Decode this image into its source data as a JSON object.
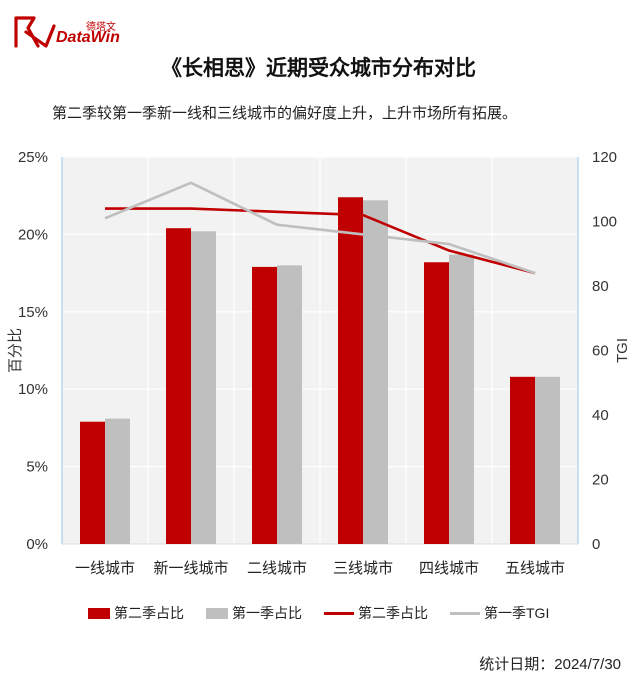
{
  "header": {
    "logo_cn": "德塔文",
    "logo_en": "DataWin",
    "title": "《长相思》近期受众城市分布对比",
    "subtitle": "第二季较第一季新一线和三线城市的偏好度上升，上升市场所有拓展。",
    "date": "统计日期：2024/7/30"
  },
  "colors": {
    "brand": "#c00000",
    "season2": "#c00000",
    "season1": "#bfbfbf",
    "plot_bg": "#f2f2f2"
  },
  "chart_data": {
    "type": "bar",
    "categories": [
      "一线城市",
      "新一线城市",
      "二线城市",
      "三线城市",
      "四线城市",
      "五线城市"
    ],
    "y_ticks": [
      "0%",
      "5%",
      "10%",
      "15%",
      "20%",
      "25%"
    ],
    "y2_ticks": [
      "0",
      "20",
      "40",
      "60",
      "80",
      "100",
      "120"
    ],
    "ylabel": "百分比",
    "y2label": "TGI",
    "ylim": [
      0,
      25
    ],
    "y2lim": [
      0,
      120
    ],
    "series": [
      {
        "name": "第二季占比",
        "kind": "bar",
        "axis": "left",
        "values": [
          7.9,
          20.4,
          17.9,
          22.4,
          18.2,
          10.8
        ]
      },
      {
        "name": "第一季占比",
        "kind": "bar",
        "axis": "left",
        "values": [
          8.1,
          20.2,
          18.0,
          22.2,
          18.7,
          10.8
        ]
      },
      {
        "name": "第二季占比",
        "kind": "line",
        "axis": "right",
        "values": [
          104,
          104,
          103,
          102,
          91,
          84
        ]
      },
      {
        "name": "第一季TGI",
        "kind": "line",
        "axis": "right",
        "values": [
          101,
          112,
          99,
          96,
          93,
          84
        ]
      }
    ],
    "legend_position": "bottom",
    "grid": true
  }
}
